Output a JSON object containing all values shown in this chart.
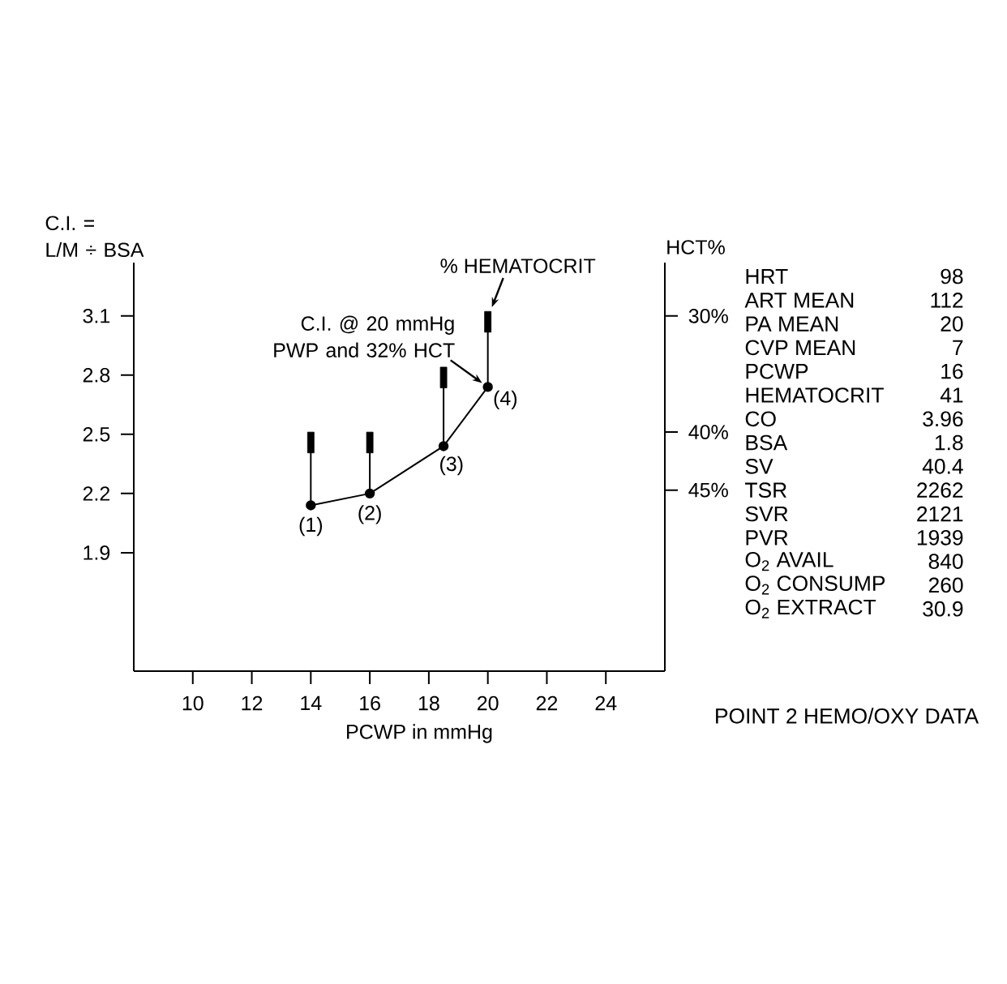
{
  "chart_data": [
    {
      "type": "line",
      "xlabel": "PCWP in mmHg",
      "ylabel": "C.I. = L/M ÷ BSA",
      "y2label": "HCT%",
      "xlim": [
        8,
        26
      ],
      "xticks": [
        10,
        12,
        14,
        16,
        18,
        20,
        22,
        24
      ],
      "ylim": [
        1.3,
        3.37
      ],
      "yticks": [
        1.9,
        2.2,
        2.5,
        2.8,
        3.1
      ],
      "y2lim": [
        60.6,
        25.4
      ],
      "y2ticks": [
        {
          "value": 30,
          "label": "30%"
        },
        {
          "value": 40,
          "label": "40%"
        },
        {
          "value": 45,
          "label": "45%"
        }
      ],
      "series": [
        {
          "type": "line",
          "color": "#000000",
          "marker": "circle",
          "x": [
            14,
            16,
            18.5,
            20
          ],
          "values": [
            2.14,
            2.2,
            2.44,
            2.74
          ]
        },
        {
          "type": "scatter",
          "axis": "y2",
          "color": "#000000",
          "marker": "square",
          "x": [
            14,
            16,
            18.5,
            20
          ],
          "values": [
            40.9,
            40.9,
            35.3,
            30.5
          ]
        }
      ],
      "annotations": [
        {
          "text": "(1)",
          "x": 14,
          "y": 2.14
        },
        {
          "text": "(2)",
          "x": 16,
          "y": 2.2
        },
        {
          "text": "(3)",
          "x": 18.5,
          "y": 2.44
        },
        {
          "text": "(4)",
          "x": 20,
          "y": 2.74
        },
        {
          "text": "C.I. @ 20 mmHg PWP and 32% HCT",
          "x": 20,
          "y": 2.74
        },
        {
          "text": "% HEMATOCRIT",
          "x": 20,
          "y": 3.07
        }
      ]
    },
    {
      "type": "other",
      "categories": [
        "HRT",
        "ART MEAN",
        "PA MEAN",
        "CVP MEAN",
        "PCWP",
        "HEMATOCRIT",
        "CO",
        "BSA",
        "SV",
        "TSR",
        "SVR",
        "PVR",
        "O$_{2}$ AVAIL",
        "O$_{2}$ CONSUMP",
        "O$_{2}$ EXTRACT"
      ],
      "values": [
        98,
        112,
        20,
        7,
        16,
        41,
        3.96,
        1.8,
        40.4,
        2262,
        2121,
        1939,
        840,
        260,
        30.9
      ],
      "data_labels": true,
      "annotations": [
        "POINT 2 HEMO/OXY DATA"
      ]
    }
  ]
}
